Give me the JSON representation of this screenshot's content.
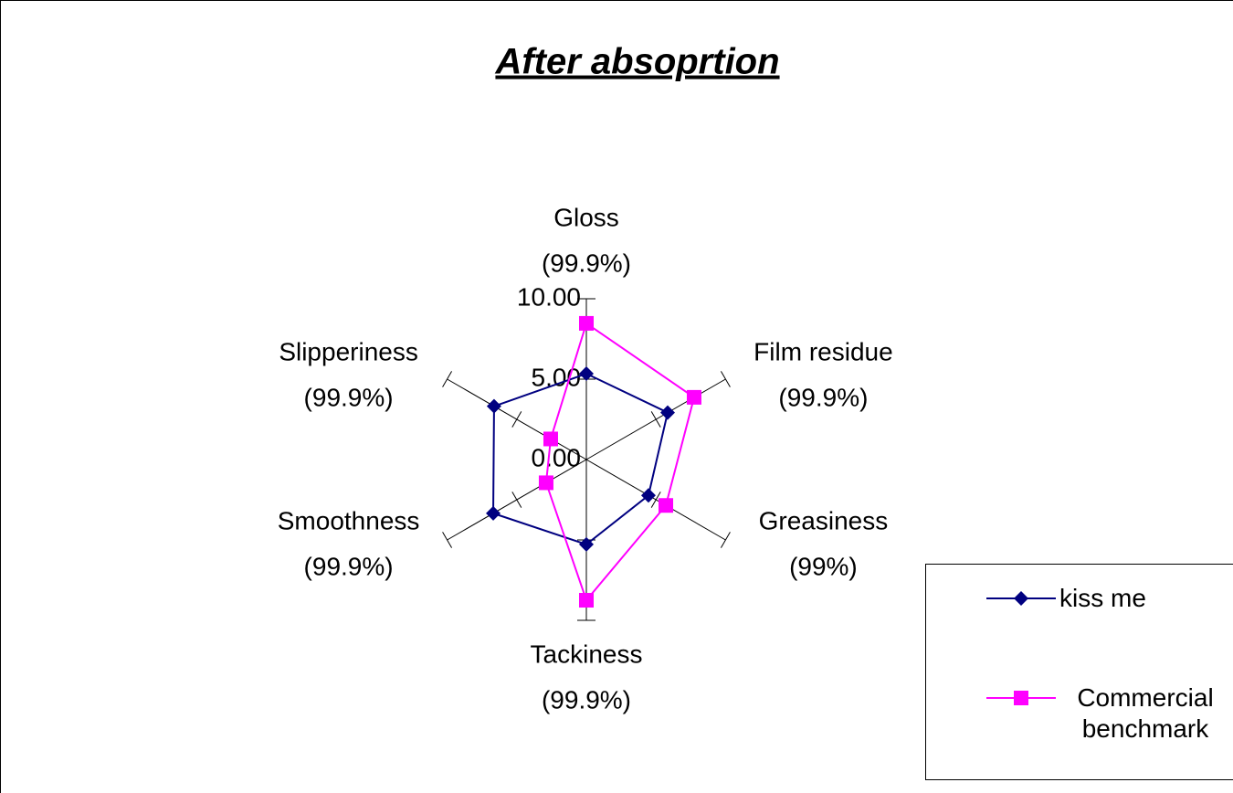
{
  "chart_data": {
    "type": "radar",
    "title": "After absoprtion",
    "categories": [
      [
        "Gloss",
        "(99.9%)"
      ],
      [
        "Film residue",
        "(99.9%)"
      ],
      [
        "Greasiness",
        "(99%)"
      ],
      [
        "Tackiness",
        "(99.9%)"
      ],
      [
        "Smoothness",
        "(99.9%)"
      ],
      [
        "Slipperiness",
        "(99.9%)"
      ]
    ],
    "series": [
      {
        "name": "kiss me",
        "color": "#000080",
        "marker": "diamond",
        "values": [
          5.34,
          5.84,
          4.46,
          5.28,
          6.69,
          6.63
        ]
      },
      {
        "name": "Commercial benchmark",
        "color": "#ff00ff",
        "marker": "square",
        "values": [
          8.47,
          7.74,
          5.71,
          8.75,
          2.89,
          2.56
        ]
      }
    ],
    "ylim": [
      0,
      10
    ],
    "yticks": [
      {
        "value": 0,
        "label": "0.00"
      },
      {
        "value": 5,
        "label": "5.00"
      },
      {
        "value": 10,
        "label": "10.00"
      }
    ],
    "legend": "lower right"
  }
}
